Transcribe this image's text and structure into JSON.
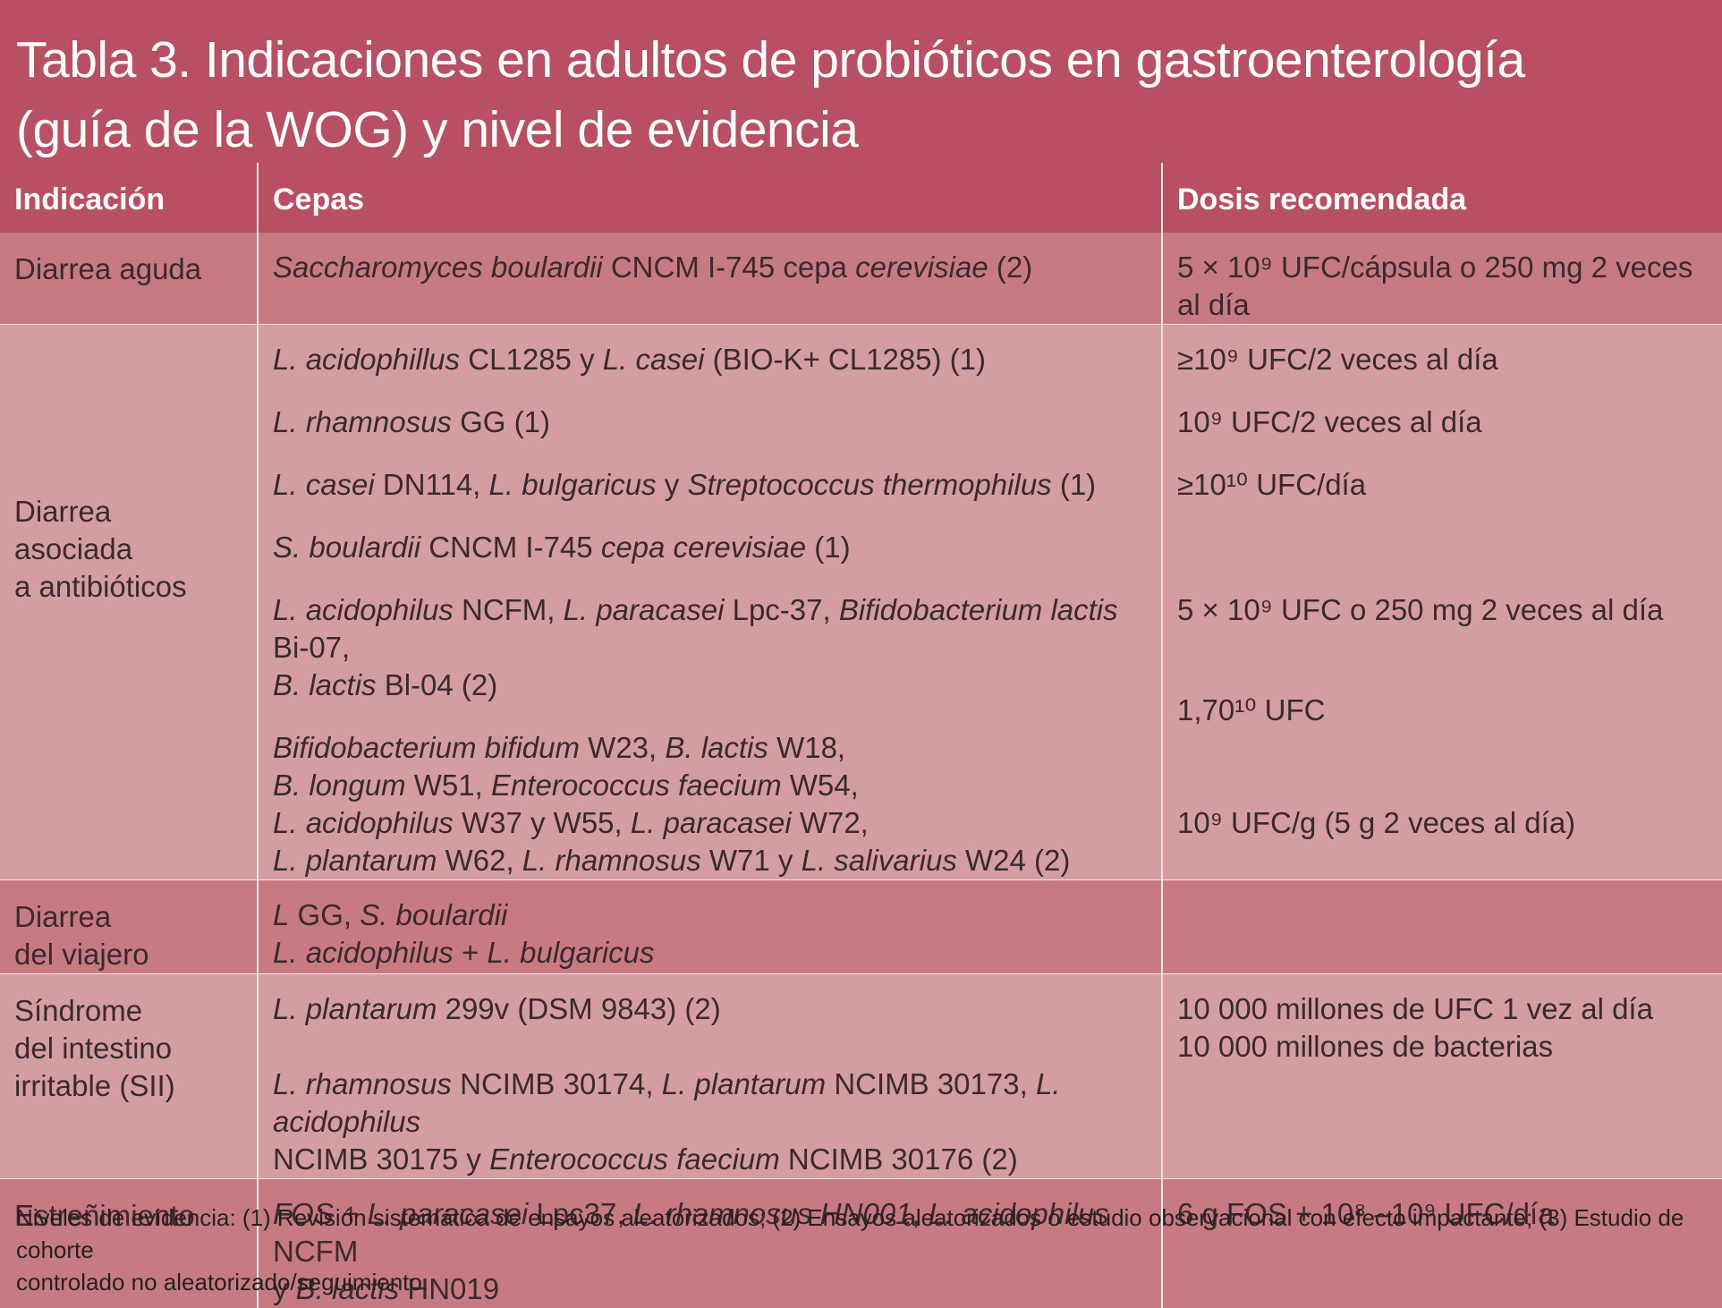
{
  "title": {
    "line1": "Tabla 3. Indicaciones en adultos de probióticos en gastroenterología",
    "line2": "(guía de la WOG) y nivel de evidencia"
  },
  "table": {
    "headers": [
      "Indicación",
      "Cepas",
      "Dosis recomendada"
    ],
    "rows": [
      {
        "indication": [
          "Diarrea aguda"
        ],
        "strains": [
          [
            {
              "t": "Saccharomyces boulardii",
              "i": true
            },
            {
              "t": " CNCM I-745 cepa ",
              "i": false
            },
            {
              "t": "cerevisiae",
              "i": true
            },
            {
              "t": " (2)",
              "i": false
            }
          ]
        ],
        "doses": [
          "5 × 10⁹ UFC/cápsula o 250 mg 2 veces al día"
        ]
      },
      {
        "indication": [
          "",
          "",
          "",
          "",
          "Diarrea",
          "asociada",
          "a antibióticos"
        ],
        "strains": [
          [
            {
              "t": "L. acidophillus",
              "i": true
            },
            {
              "t": " CL1285 y ",
              "i": false
            },
            {
              "t": "L. casei",
              "i": true
            },
            {
              "t": " (BIO-K+ CL1285) (1)",
              "i": false
            }
          ],
          "GAP",
          [
            {
              "t": "L. rhamnosus",
              "i": true
            },
            {
              "t": " GG (1)",
              "i": false
            }
          ],
          "GAP",
          [
            {
              "t": "L. casei",
              "i": true
            },
            {
              "t": " DN114, ",
              "i": false
            },
            {
              "t": "L. bulgaricus",
              "i": true
            },
            {
              "t": " y ",
              "i": false
            },
            {
              "t": "Streptococcus thermophilus",
              "i": true
            },
            {
              "t": " (1)",
              "i": false
            }
          ],
          "GAP",
          [
            {
              "t": "S. boulardii",
              "i": true
            },
            {
              "t": " CNCM I-745 ",
              "i": false
            },
            {
              "t": "cepa cerevisiae",
              "i": true
            },
            {
              "t": " (1)",
              "i": false
            }
          ],
          "GAP",
          [
            {
              "t": "L. acidophilus",
              "i": true
            },
            {
              "t": " NCFM, ",
              "i": false
            },
            {
              "t": "L. paracasei",
              "i": true
            },
            {
              "t": " Lpc-37, ",
              "i": false
            },
            {
              "t": "Bifidobacterium lactis",
              "i": true
            },
            {
              "t": " Bi-07,",
              "i": false
            }
          ],
          [
            {
              "t": "B. lactis",
              "i": true
            },
            {
              "t": " Bl-04 (2)",
              "i": false
            }
          ],
          "GAP",
          [
            {
              "t": "Bifidobacterium bifidum",
              "i": true
            },
            {
              "t": " W23, ",
              "i": false
            },
            {
              "t": "B. lactis",
              "i": true
            },
            {
              "t": " W18,",
              "i": false
            }
          ],
          [
            {
              "t": "B. longum",
              "i": true
            },
            {
              "t": " W51, ",
              "i": false
            },
            {
              "t": "Enterococcus faecium",
              "i": true
            },
            {
              "t": " W54,",
              "i": false
            }
          ],
          [
            {
              "t": "L. acidophilus",
              "i": true
            },
            {
              "t": " W37 y W55, ",
              "i": false
            },
            {
              "t": "L. paracasei",
              "i": true
            },
            {
              "t": " W72,",
              "i": false
            }
          ],
          [
            {
              "t": "L. plantarum",
              "i": true
            },
            {
              "t": " W62, ",
              "i": false
            },
            {
              "t": "L. rhamnosus",
              "i": true
            },
            {
              "t": " W71 y ",
              "i": false
            },
            {
              "t": "L. salivarius",
              "i": true
            },
            {
              "t": " W24 (2)",
              "i": false
            }
          ]
        ],
        "doses": [
          "≥10⁹ UFC/2 veces al día",
          "GAP",
          "10⁹ UFC/2 veces al día",
          "GAP",
          "≥10¹⁰ UFC/día",
          "GAP",
          "",
          "GAP",
          "5 × 10⁹ UFC o 250 mg 2 veces al día",
          "",
          "GAP",
          "1,70¹⁰ UFC",
          "",
          "",
          "10⁹ UFC/g (5 g 2 veces al día)"
        ]
      },
      {
        "indication": [
          "Diarrea",
          "del viajero"
        ],
        "strains": [
          [
            {
              "t": "L",
              "i": true
            },
            {
              "t": " GG, ",
              "i": false
            },
            {
              "t": "S. boulardii",
              "i": true
            }
          ],
          [
            {
              "t": "L. acidophilus",
              "i": true
            },
            {
              "t": " + ",
              "i": false
            },
            {
              "t": "L. bulgaricus",
              "i": true
            }
          ]
        ],
        "doses": [
          ""
        ]
      },
      {
        "indication": [
          "Síndrome",
          "del intestino",
          "irritable (SII)"
        ],
        "strains": [
          [
            {
              "t": "L. plantarum",
              "i": true
            },
            {
              "t": " 299v (DSM 9843) (2)",
              "i": false
            }
          ],
          "",
          [
            {
              "t": "L. rhamnosus",
              "i": true
            },
            {
              "t": " NCIMB 30174, ",
              "i": false
            },
            {
              "t": "L. plantarum",
              "i": true
            },
            {
              "t": " NCIMB 30173, ",
              "i": false
            },
            {
              "t": "L. acidophilus",
              "i": true
            }
          ],
          [
            {
              "t": "NCIMB 30175 y ",
              "i": false
            },
            {
              "t": "Enterococcus faecium",
              "i": true
            },
            {
              "t": " NCIMB 30176 (2)",
              "i": false
            }
          ]
        ],
        "doses": [
          "10 000 millones de UFC 1 vez al día",
          "10 000 millones de bacterias"
        ]
      },
      {
        "indication": [
          "Estreñimiento"
        ],
        "strains": [
          [
            {
              "t": "FOS + L. paracasei",
              "i": true
            },
            {
              "t": " Lpc37, ",
              "i": false
            },
            {
              "t": "L. rhamnosus HN001",
              "i": true
            },
            {
              "t": ", ",
              "i": false
            },
            {
              "t": "L. acidophilus",
              "i": true
            },
            {
              "t": " NCFM",
              "i": false
            }
          ],
          [
            {
              "t": "y ",
              "i": false
            },
            {
              "t": "B. lactis",
              "i": true
            },
            {
              "t": " HN019",
              "i": false
            }
          ]
        ],
        "doses": [
          "6 g FOS + 10⁸ –10⁹ UFC/día"
        ]
      }
    ]
  },
  "footnote": {
    "line1": "Niveles de evidencia: (1) Revisión sistemática de ensayos aleatorizados; (2) Ensayos aleatorizados o estudio observacional con efecto impactante; (3) Estudio de cohorte",
    "line2": "controlado no aleatorizado/seguimiento."
  },
  "colors": {
    "header_bg": "#b84f63",
    "row_dark": "#c87a83",
    "row_light": "#d49da2",
    "divider": "#f2e3e6"
  }
}
